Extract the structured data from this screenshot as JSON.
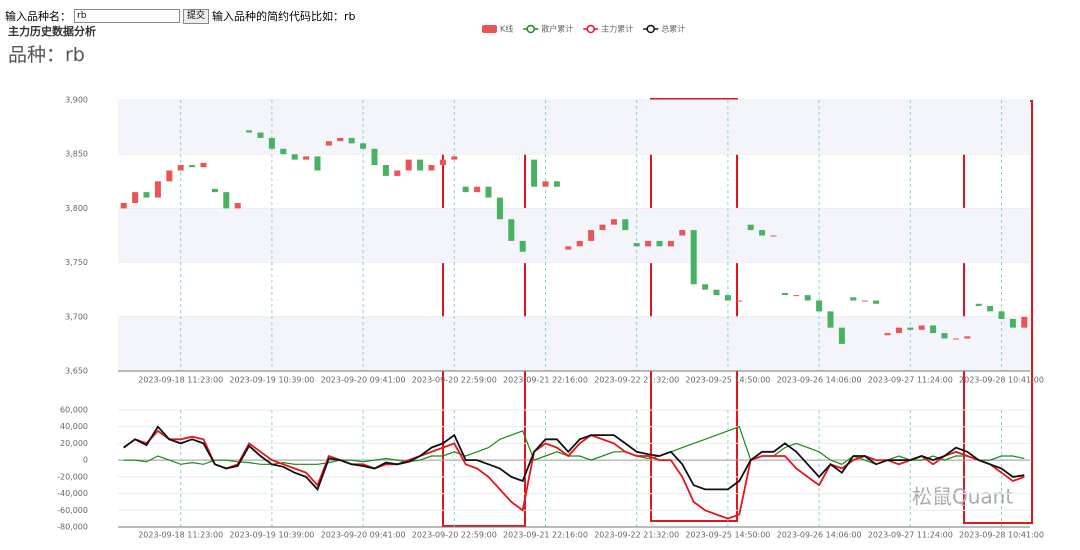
{
  "header": {
    "label": "输入品种名：",
    "input": "rb",
    "button": "提交",
    "hint": "输入品种的简约代码比如：rb",
    "title": "主力历史数据分析",
    "symbol": "品种：rb"
  },
  "watermark": "松鼠Quant",
  "chart_data": {
    "type": "candlestick",
    "categories": [
      null,
      null,
      null,
      null,
      null,
      "2023-09-18 11:23:00",
      null,
      null,
      null,
      null,
      null,
      null,
      null,
      "2023-09-19 10:39:00",
      null,
      null,
      null,
      null,
      null,
      null,
      null,
      "2023-09-20 09:41:00",
      null,
      null,
      null,
      null,
      null,
      null,
      null,
      "2023-09-20 22:59:00",
      null,
      null,
      null,
      null,
      null,
      null,
      null,
      "2023-09-21 22:16:00",
      null,
      null,
      null,
      null,
      null,
      null,
      null,
      "2023-09-22 21:32:00",
      null,
      null,
      null,
      null,
      null,
      null,
      null,
      "2023-09-25 14:50:00",
      null,
      null,
      null,
      null,
      null,
      null,
      null,
      "2023-09-26 14:06:00",
      null,
      null,
      null,
      null,
      null,
      null,
      null,
      "2023-09-27 11:24:00",
      null,
      null,
      null,
      null,
      null,
      null,
      null,
      "2023-09-28 10:41:00",
      null,
      null
    ],
    "candles": {
      "name": "K线",
      "up_color": "#eb5454",
      "down_color": "#47b262",
      "open": [
        3800,
        3805,
        3815,
        3810,
        3825,
        3835,
        3840,
        3838,
        3818,
        3815,
        3800,
        3872,
        3870,
        3865,
        3855,
        3850,
        3845,
        3848,
        3858,
        3862,
        3865,
        3860,
        3855,
        3840,
        3830,
        3835,
        3845,
        3835,
        3840,
        3845,
        3820,
        3815,
        3820,
        3810,
        3790,
        3770,
        3845,
        3820,
        3825,
        3762,
        3765,
        3770,
        3780,
        3785,
        3790,
        3768,
        3765,
        3770,
        3765,
        3775,
        3780,
        3730,
        3725,
        3720,
        3715,
        3785,
        3780,
        3775,
        3722,
        3720,
        3720,
        3715,
        3705,
        3690,
        3718,
        3715,
        3715,
        3683,
        3685,
        3690,
        3688,
        3692,
        3685,
        3680,
        3680,
        3712,
        3710,
        3705,
        3698,
        3690
      ],
      "close": [
        3805,
        3815,
        3810,
        3825,
        3835,
        3840,
        3838,
        3842,
        3815,
        3800,
        3805,
        3870,
        3865,
        3855,
        3850,
        3845,
        3848,
        3835,
        3862,
        3865,
        3860,
        3855,
        3840,
        3830,
        3835,
        3845,
        3835,
        3840,
        3845,
        3848,
        3815,
        3820,
        3810,
        3790,
        3770,
        3760,
        3820,
        3825,
        3820,
        3765,
        3770,
        3780,
        3785,
        3790,
        3780,
        3765,
        3770,
        3765,
        3770,
        3780,
        3730,
        3725,
        3720,
        3715,
        3715,
        3780,
        3775,
        3775,
        3720,
        3720,
        3715,
        3705,
        3690,
        3675,
        3715,
        3715,
        3712,
        3685,
        3690,
        3688,
        3692,
        3685,
        3680,
        3680,
        3682,
        3710,
        3705,
        3698,
        3690,
        3700
      ]
    },
    "ylim": [
      3650,
      3900
    ],
    "yticks": [
      {
        "value": 3650,
        "label": "3,650"
      },
      {
        "value": 3700,
        "label": "3,700"
      },
      {
        "value": 3750,
        "label": "3,750"
      },
      {
        "value": 3800,
        "label": "3,800"
      },
      {
        "value": 3850,
        "label": "3,850"
      },
      {
        "value": 3900,
        "label": "3,900"
      }
    ],
    "lower": {
      "type": "line",
      "ylim": [
        -80000,
        60000
      ],
      "yticks": [
        {
          "value": -80000,
          "label": "-80,000"
        },
        {
          "value": -60000,
          "label": "-60,000"
        },
        {
          "value": -40000,
          "label": "-40,000"
        },
        {
          "value": -20000,
          "label": "-20,000"
        },
        0,
        {
          "value": 20000,
          "label": "20,000"
        },
        {
          "value": 40000,
          "label": "40,000"
        },
        {
          "value": 60000,
          "label": "60,000"
        }
      ],
      "series": [
        {
          "name": "散户累计",
          "color": "#1a8a1a",
          "values": [
            0,
            0,
            -2000,
            5000,
            0,
            -5000,
            -3000,
            -5000,
            0,
            0,
            -2000,
            -3000,
            -5000,
            -5000,
            -3000,
            -5000,
            -5000,
            -5000,
            -3000,
            0,
            0,
            -2000,
            0,
            2000,
            0,
            -2000,
            0,
            5000,
            5000,
            10000,
            5000,
            10000,
            15000,
            25000,
            30000,
            35000,
            0,
            5000,
            10000,
            5000,
            5000,
            0,
            5000,
            10000,
            10000,
            5000,
            2000,
            5000,
            10000,
            15000,
            20000,
            25000,
            30000,
            35000,
            40000,
            0,
            5000,
            5000,
            15000,
            20000,
            15000,
            10000,
            0,
            -5000,
            5000,
            0,
            -5000,
            0,
            5000,
            0,
            0,
            5000,
            0,
            5000,
            5000,
            0,
            0,
            5000,
            5000,
            2000
          ]
        },
        {
          "name": "主力累计",
          "color": "#e8141b",
          "values": [
            15000,
            25000,
            20000,
            35000,
            25000,
            25000,
            28000,
            25000,
            -5000,
            -10000,
            -5000,
            20000,
            10000,
            0,
            -5000,
            -10000,
            -15000,
            -30000,
            5000,
            0,
            -5000,
            -5000,
            -10000,
            -5000,
            -5000,
            0,
            5000,
            10000,
            15000,
            20000,
            -5000,
            -10000,
            -20000,
            -35000,
            -50000,
            -60000,
            10000,
            20000,
            15000,
            5000,
            20000,
            30000,
            25000,
            20000,
            10000,
            5000,
            5000,
            0,
            0,
            -20000,
            -50000,
            -60000,
            -65000,
            -70000,
            -65000,
            0,
            5000,
            5000,
            5000,
            -10000,
            -20000,
            -30000,
            -5000,
            -10000,
            0,
            5000,
            0,
            0,
            -5000,
            0,
            5000,
            -5000,
            5000,
            10000,
            5000,
            0,
            -5000,
            -15000,
            -25000,
            -20000
          ]
        },
        {
          "name": "总累计",
          "color": "#111111",
          "values": [
            15000,
            25000,
            18000,
            40000,
            25000,
            20000,
            25000,
            20000,
            -5000,
            -10000,
            -7000,
            17000,
            5000,
            -5000,
            -8000,
            -15000,
            -20000,
            -35000,
            2000,
            0,
            -5000,
            -7000,
            -10000,
            -3000,
            -5000,
            -2000,
            5000,
            15000,
            20000,
            30000,
            0,
            0,
            -5000,
            -10000,
            -20000,
            -25000,
            10000,
            25000,
            25000,
            10000,
            25000,
            30000,
            30000,
            30000,
            20000,
            10000,
            7000,
            5000,
            10000,
            -5000,
            -30000,
            -35000,
            -35000,
            -35000,
            -25000,
            0,
            10000,
            10000,
            20000,
            10000,
            -5000,
            -20000,
            -5000,
            -15000,
            5000,
            5000,
            -5000,
            0,
            0,
            0,
            5000,
            0,
            5000,
            15000,
            10000,
            0,
            -5000,
            -10000,
            -20000,
            -18000
          ]
        }
      ]
    }
  }
}
